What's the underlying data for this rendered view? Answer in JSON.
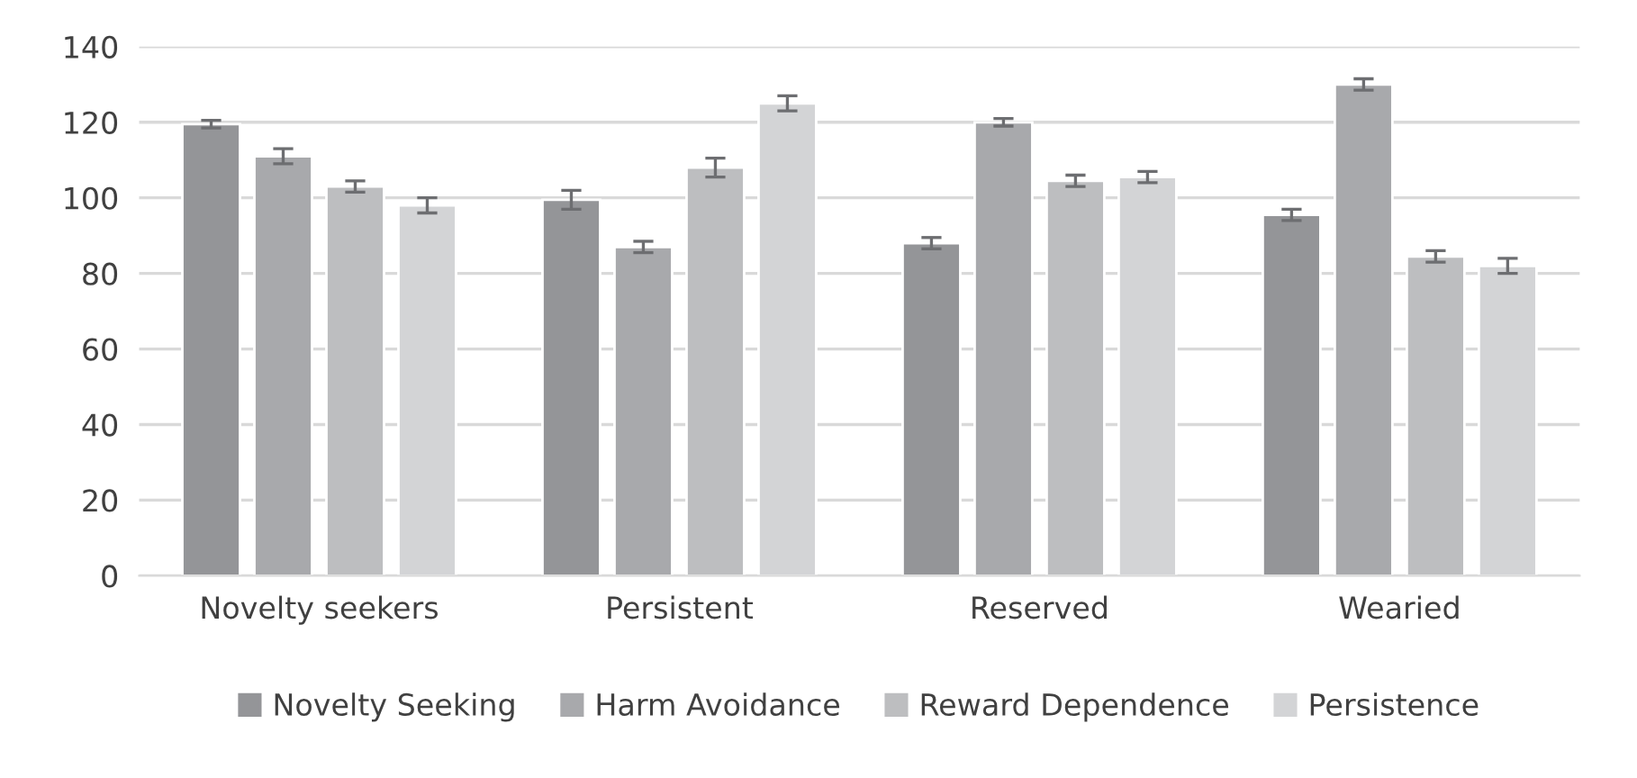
{
  "chart_data": {
    "type": "bar",
    "categories": [
      "Novelty seekers",
      "Persistent",
      "Reserved",
      "Wearied"
    ],
    "series": [
      {
        "name": "Novelty Seeking",
        "color": "#949598",
        "values": [
          119.5,
          99.5,
          88,
          95.5
        ],
        "errors": [
          1,
          2.5,
          1.5,
          1.5
        ]
      },
      {
        "name": "Harm Avoidance",
        "color": "#a8a9ac",
        "values": [
          111,
          87,
          120,
          130
        ],
        "errors": [
          2,
          1.5,
          1,
          1.5
        ]
      },
      {
        "name": "Reward Dependence",
        "color": "#bdbec0",
        "values": [
          103,
          108,
          104.5,
          84.5
        ],
        "errors": [
          1.5,
          2.5,
          1.5,
          1.5
        ]
      },
      {
        "name": "Persistence",
        "color": "#d3d4d6",
        "values": [
          98,
          125,
          105.5,
          82
        ],
        "errors": [
          2,
          2,
          1.5,
          2
        ]
      }
    ],
    "ylim": [
      0,
      140
    ],
    "yticks": [
      0,
      20,
      40,
      60,
      80,
      100,
      120,
      140
    ],
    "grid": "y",
    "legend": "bottom"
  }
}
